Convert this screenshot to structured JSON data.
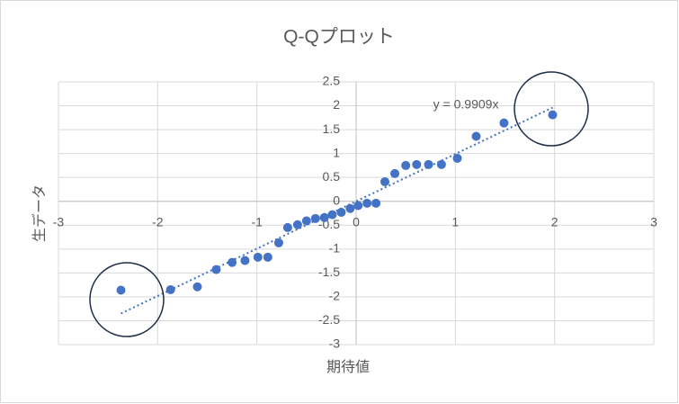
{
  "chart_data": {
    "type": "scatter",
    "title": "Q-Qプロット",
    "x_label": "期待値",
    "y_label": "生データ",
    "series": [
      {
        "name": "生データ",
        "color": "#4472c4",
        "x": [
          -2.37,
          -1.87,
          -1.6,
          -1.41,
          -1.25,
          -1.12,
          -0.99,
          -0.89,
          -0.78,
          -0.69,
          -0.59,
          -0.5,
          -0.41,
          -0.32,
          -0.24,
          -0.15,
          -0.06,
          0.02,
          0.11,
          0.2,
          0.29,
          0.39,
          0.5,
          0.61,
          0.73,
          0.86,
          1.02,
          1.21,
          1.49,
          1.98
        ],
        "values": [
          -1.86,
          -1.85,
          -1.79,
          -1.43,
          -1.28,
          -1.24,
          -1.17,
          -1.17,
          -0.87,
          -0.55,
          -0.49,
          -0.41,
          -0.36,
          -0.34,
          -0.28,
          -0.23,
          -0.15,
          -0.09,
          -0.04,
          -0.04,
          0.41,
          0.58,
          0.75,
          0.77,
          0.77,
          0.77,
          0.9,
          1.36,
          1.64,
          1.81
        ]
      }
    ],
    "trendline": {
      "slope": 0.9909,
      "label": "y = 0.9909x"
    },
    "xlim": [
      -3,
      3
    ],
    "xticks": [
      -3,
      -2,
      -1,
      0,
      1,
      2,
      3
    ],
    "ylim": [
      -3,
      2.5
    ],
    "yticks": [
      -3,
      -2.5,
      -2,
      -1.5,
      -1,
      -0.5,
      0,
      0.5,
      1,
      1.5,
      2,
      2.5
    ],
    "grid": true
  }
}
